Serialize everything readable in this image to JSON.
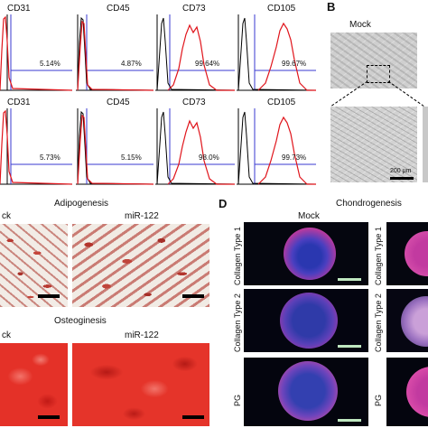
{
  "panel_labels": {
    "b": "B",
    "d": "D"
  },
  "flow": {
    "markers": [
      "CD31",
      "CD45",
      "CD73",
      "CD105"
    ],
    "row1_percent": [
      "5.14%",
      "4.87%",
      "99.64%",
      "99.67%"
    ],
    "row2_percent": [
      "5.73%",
      "5.15%",
      "98.0%",
      "99.73%"
    ]
  },
  "panel_b": {
    "title": "Mock",
    "scale": "200 μm"
  },
  "panel_c": {
    "adipo_title": "Adipogenesis",
    "osteo_title": "Osteoginesis",
    "mock_label": "ck",
    "mir_label": "miR-122"
  },
  "panel_d": {
    "title": "Chondrogenesis",
    "mock_label": "Mock",
    "rows": [
      "Collagen Type 1",
      "Collagen Type 2",
      "PG"
    ]
  },
  "colors": {
    "histogram_red": "#e0141b",
    "gate_blue": "#3a3ad0"
  }
}
